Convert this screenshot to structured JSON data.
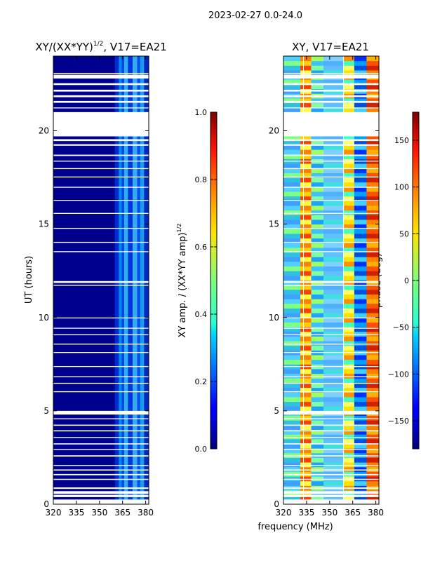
{
  "figure": {
    "suptitle": "2023-02-27 0.0-24.0",
    "shared_xlabel": "frequency (MHz)"
  },
  "chart_data": [
    {
      "type": "heatmap",
      "title_main": "XY/(XX*YY)",
      "title_exp": "1/2",
      "title_suffix": ", V17=EA21",
      "ylabel": "UT (hours)",
      "xlim": [
        320,
        382
      ],
      "ylim": [
        0,
        24
      ],
      "xticks": [
        "320",
        "335",
        "350",
        "365",
        "380"
      ],
      "xtick_values": [
        320,
        335,
        350,
        365,
        380
      ],
      "yticks": [
        "0",
        "5",
        "10",
        "15",
        "20"
      ],
      "ytick_values": [
        0,
        5,
        10,
        15,
        20
      ],
      "data_freq_range": [
        320,
        382
      ],
      "band_columns": [
        {
          "f0": 360.0,
          "f1": 362.5,
          "color": "#0033dd"
        },
        {
          "f0": 362.5,
          "f1": 364.5,
          "color": "#00a0ff"
        },
        {
          "f0": 364.5,
          "f1": 366.0,
          "color": "#0050ff"
        },
        {
          "f0": 366.0,
          "f1": 368.5,
          "color": "#30d0ff"
        },
        {
          "f0": 368.5,
          "f1": 371.5,
          "color": "#0040ee"
        },
        {
          "f0": 371.5,
          "f1": 374.5,
          "color": "#40c8ff"
        },
        {
          "f0": 374.5,
          "f1": 376.5,
          "color": "#0060ff"
        },
        {
          "f0": 376.5,
          "f1": 379.0,
          "color": "#20b8ff"
        },
        {
          "f0": 379.0,
          "f1": 382.0,
          "color": "#0030cc"
        }
      ],
      "colorbar": {
        "label_main": "XY amp. / (XX*YY amp)",
        "label_exp": "1/2",
        "range": [
          0.0,
          1.0
        ],
        "ticks": [
          "0.0",
          "0.2",
          "0.4",
          "0.6",
          "0.8",
          "1.0"
        ],
        "tick_values": [
          0.0,
          0.2,
          0.4,
          0.6,
          0.8,
          1.0
        ]
      }
    },
    {
      "type": "heatmap",
      "title": "XY, V17=EA21",
      "xlim": [
        320,
        382
      ],
      "ylim": [
        0,
        24
      ],
      "xticks": [
        "320",
        "335",
        "350",
        "365",
        "380"
      ],
      "xtick_values": [
        320,
        335,
        350,
        365,
        380
      ],
      "yticks": [
        "0",
        "5",
        "10",
        "15",
        "20"
      ],
      "ytick_values": [
        0,
        5,
        10,
        15,
        20
      ],
      "phase_band_columns": [
        {
          "f0": 320.0,
          "f1": 331.0,
          "colors": [
            "#40a0ff",
            "#50d0ff",
            "#80ff80",
            "#30c0e0"
          ]
        },
        {
          "f0": 331.0,
          "f1": 338.0,
          "colors": [
            "#ff8000",
            "#ffd000",
            "#ff4000",
            "#ffff40"
          ]
        },
        {
          "f0": 338.0,
          "f1": 346.0,
          "colors": [
            "#40c0ff",
            "#80ffa0",
            "#20a0ff",
            "#a0ff60"
          ]
        },
        {
          "f0": 346.0,
          "f1": 359.0,
          "colors": [
            "#60c0ff",
            "#40e0e0",
            "#80d0ff",
            "#50b0ff"
          ]
        },
        {
          "f0": 359.0,
          "f1": 366.0,
          "colors": [
            "#ffe000",
            "#ff9000",
            "#40ffc0",
            "#ffff60"
          ]
        },
        {
          "f0": 366.0,
          "f1": 374.0,
          "colors": [
            "#0030ff",
            "#00a0ff",
            "#0050e0",
            "#40d0ff"
          ]
        },
        {
          "f0": 374.0,
          "f1": 382.0,
          "colors": [
            "#ff5000",
            "#d02000",
            "#ff8000",
            "#ffb000"
          ]
        }
      ],
      "colorbar": {
        "label": "phase (deg)",
        "range": [
          -180,
          180
        ],
        "ticks": [
          "−150",
          "−100",
          "−50",
          "0",
          "50",
          "100",
          "150"
        ],
        "tick_values": [
          -150,
          -100,
          -50,
          0,
          50,
          100,
          150
        ]
      }
    }
  ],
  "flagged_ut_ranges": [
    [
      0.0,
      0.25
    ],
    [
      0.38,
      0.5
    ],
    [
      0.55,
      0.7
    ],
    [
      0.82,
      0.9
    ],
    [
      1.3,
      1.36
    ],
    [
      1.55,
      1.62
    ],
    [
      1.8,
      1.86
    ],
    [
      2.05,
      2.1
    ],
    [
      2.55,
      2.62
    ],
    [
      2.9,
      2.95
    ],
    [
      3.2,
      3.26
    ],
    [
      3.55,
      3.6
    ],
    [
      3.9,
      3.96
    ],
    [
      4.2,
      4.26
    ],
    [
      4.55,
      4.6
    ],
    [
      4.8,
      5.0
    ],
    [
      6.0,
      6.05
    ],
    [
      6.45,
      6.5
    ],
    [
      6.8,
      6.85
    ],
    [
      7.35,
      7.4
    ],
    [
      8.1,
      8.15
    ],
    [
      8.55,
      8.6
    ],
    [
      9.05,
      9.1
    ],
    [
      9.4,
      9.45
    ],
    [
      9.95,
      10.0
    ],
    [
      11.7,
      11.75
    ],
    [
      11.85,
      11.95
    ],
    [
      13.5,
      13.55
    ],
    [
      14.0,
      14.05
    ],
    [
      14.75,
      14.8
    ],
    [
      15.55,
      15.6
    ],
    [
      16.25,
      16.3
    ],
    [
      16.95,
      17.0
    ],
    [
      17.5,
      17.55
    ],
    [
      17.95,
      18.0
    ],
    [
      18.35,
      18.4
    ],
    [
      18.65,
      18.72
    ],
    [
      19.2,
      19.28
    ],
    [
      19.45,
      19.55
    ],
    [
      19.7,
      21.0
    ],
    [
      21.2,
      21.25
    ],
    [
      21.5,
      21.6
    ],
    [
      21.8,
      21.9
    ],
    [
      22.1,
      22.2
    ],
    [
      22.45,
      22.55
    ],
    [
      22.8,
      23.0
    ],
    [
      23.05,
      23.1
    ]
  ],
  "colors": {
    "background": "#00008f",
    "accent_line": "#ffffff"
  }
}
